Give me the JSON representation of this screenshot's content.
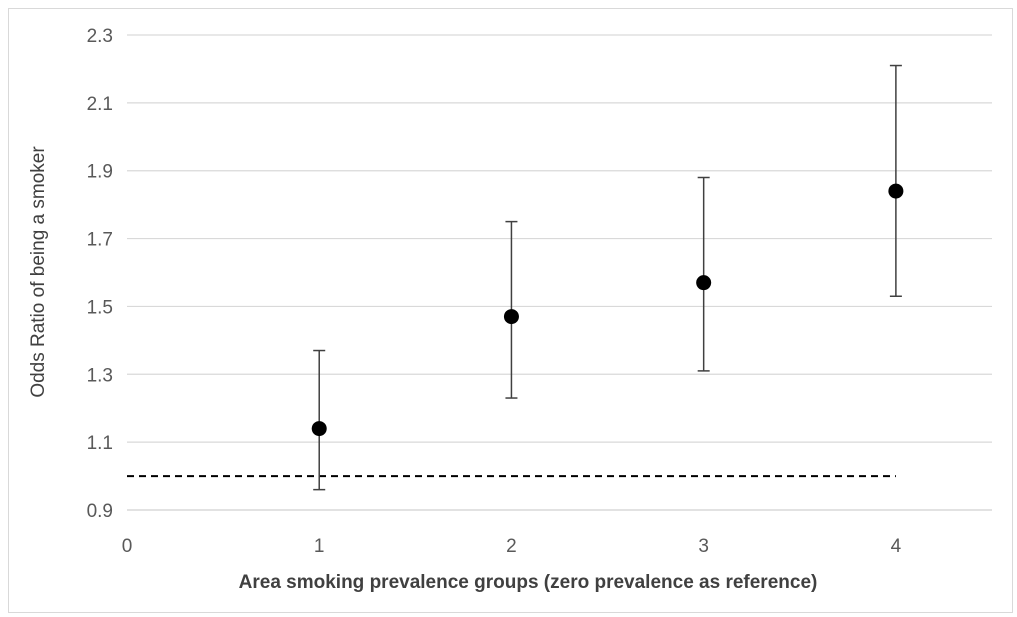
{
  "chart_data": {
    "type": "scatter",
    "title": "",
    "xlabel": "Area smoking prevalence groups (zero prevalence as reference)",
    "ylabel": "Odds Ratio of being a smoker",
    "xlim": [
      0,
      4.5
    ],
    "ylim": [
      0.9,
      2.3
    ],
    "x_ticks": [
      "0",
      "1",
      "2",
      "3",
      "4"
    ],
    "y_ticks": [
      "0.9",
      "1.1",
      "1.3",
      "1.5",
      "1.7",
      "1.9",
      "2.1",
      "2.3"
    ],
    "grid": "horizontal",
    "legend": "none",
    "reference_line": {
      "y": 1.0,
      "style": "dashed",
      "x_from": 0,
      "x_to": 4
    },
    "points": [
      {
        "x": 1,
        "y": 1.14,
        "lower": 0.96,
        "upper": 1.37
      },
      {
        "x": 2,
        "y": 1.47,
        "lower": 1.23,
        "upper": 1.75
      },
      {
        "x": 3,
        "y": 1.57,
        "lower": 1.31,
        "upper": 1.88
      },
      {
        "x": 4,
        "y": 1.84,
        "lower": 1.53,
        "upper": 2.21
      }
    ],
    "colors": {
      "marker": "#000000",
      "grid": "#d9d9d9",
      "error_bar": "#404040",
      "reference": "#000000"
    }
  }
}
